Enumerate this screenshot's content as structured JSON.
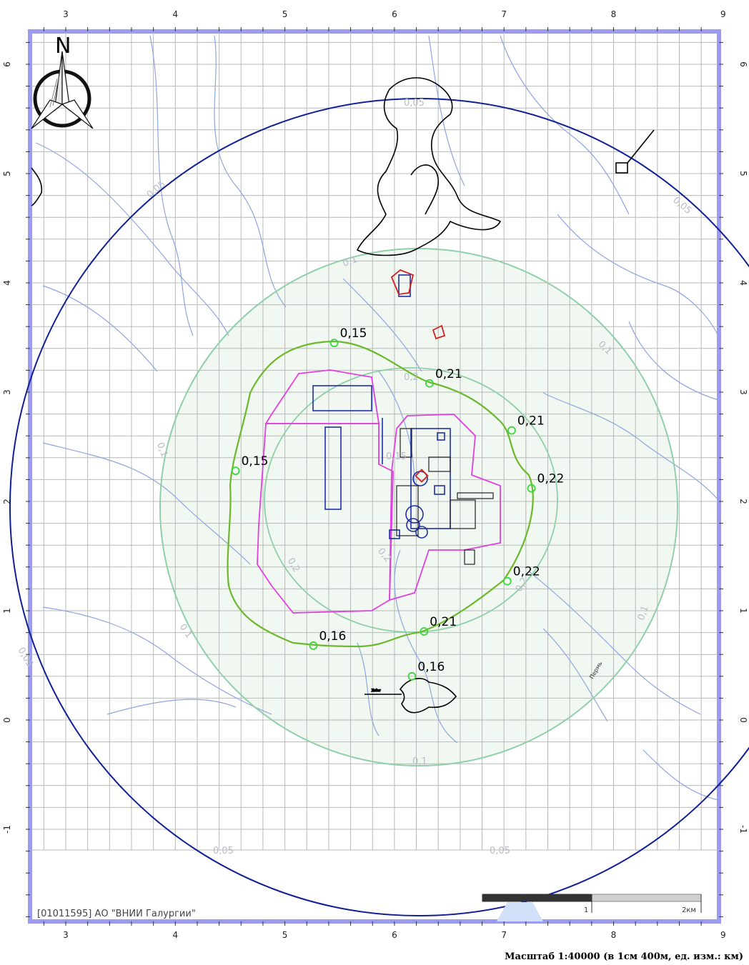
{
  "organization": "[01011595] АО \"ВНИИ Галургии\"",
  "scale_caption": "Масштаб 1:40000 (в 1см 400м, ед. изм.: км)",
  "north_label": "N",
  "scale_bar": {
    "mid_label": "1",
    "end_label": "2км"
  },
  "axes": {
    "x_ticks": [
      "3",
      "4",
      "5",
      "6",
      "7",
      "8",
      "9"
    ],
    "y_ticks": [
      "6",
      "5",
      "4",
      "3",
      "2",
      "1",
      "0",
      "-1"
    ]
  },
  "isoline_labels": [
    "0,05",
    "0,05",
    "0,05",
    "0,05",
    "0,05",
    "0,05",
    "0,1",
    "0,1",
    "0,1",
    "0,1",
    "0,1",
    "0,1",
    "0,2",
    "0,2",
    "0,2",
    "0,2",
    "0,15"
  ],
  "points": [
    {
      "label": "0,15",
      "x": 5.45,
      "y": 3.45
    },
    {
      "label": "0,21",
      "x": 6.32,
      "y": 3.08
    },
    {
      "label": "0,21",
      "x": 7.07,
      "y": 2.65
    },
    {
      "label": "0,15",
      "x": 4.55,
      "y": 2.28
    },
    {
      "label": "0,22",
      "x": 7.25,
      "y": 2.12
    },
    {
      "label": "0,22",
      "x": 7.03,
      "y": 1.27
    },
    {
      "label": "0,21",
      "x": 6.27,
      "y": 0.81
    },
    {
      "label": "0,16",
      "x": 5.26,
      "y": 0.68
    },
    {
      "label": "0,16",
      "x": 6.16,
      "y": 0.4
    }
  ],
  "river_label": "Пермь",
  "colors": {
    "frame": "#9b9bef",
    "grid": "#b8b8b8",
    "outer_circle": "#0f1f96",
    "inner_circle": "#90cfa8",
    "contour_015": "#6cb82c",
    "site_boundary": "#e040e0",
    "rivers": "#8da6de",
    "point": "#3ed63e"
  }
}
